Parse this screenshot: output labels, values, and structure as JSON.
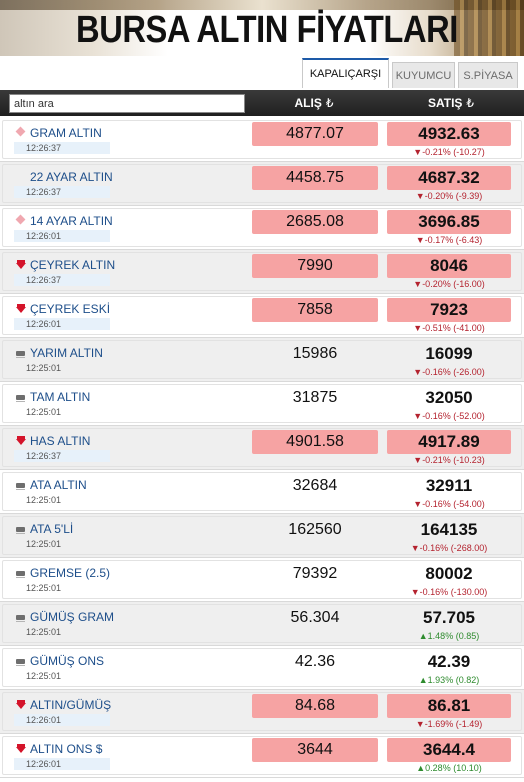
{
  "banner": {
    "title": "BURSA ALTIN FİYATLARI"
  },
  "tabs": [
    {
      "label": "KAPALIÇARŞI",
      "active": true
    },
    {
      "label": "KUYUMCU",
      "active": false
    },
    {
      "label": "S.PİYASA",
      "active": false
    }
  ],
  "search": {
    "placeholder": "altın ara",
    "value": ""
  },
  "columns": {
    "buy": "ALIŞ",
    "sell": "SATIŞ",
    "currency_symbol": "₺"
  },
  "colors": {
    "highlight": "#f6a3a3",
    "down": "#d4142a",
    "up": "#2e8b2e",
    "name": "#1d4e8a"
  },
  "rows": [
    {
      "name": "GRAM ALTIN",
      "time": "12:26:37",
      "buy": "4877.07",
      "sell": "4932.63",
      "change": "▼-0.21% (-10.27)",
      "trend": "light",
      "highlight": true,
      "changeUp": false
    },
    {
      "name": "22 AYAR ALTIN",
      "time": "12:26:37",
      "buy": "4458.75",
      "sell": "4687.32",
      "change": "▼-0.20% (-9.39)",
      "trend": "none",
      "highlight": true,
      "changeUp": false
    },
    {
      "name": "14 AYAR ALTIN",
      "time": "12:26:01",
      "buy": "2685.08",
      "sell": "3696.85",
      "change": "▼-0.17% (-6.43)",
      "trend": "light",
      "highlight": true,
      "changeUp": false
    },
    {
      "name": "ÇEYREK ALTIN",
      "time": "12:26:37",
      "buy": "7990",
      "sell": "8046",
      "change": "▼-0.20% (-16.00)",
      "trend": "down",
      "highlight": true,
      "changeUp": false
    },
    {
      "name": "ÇEYREK ESKİ",
      "time": "12:26:01",
      "buy": "7858",
      "sell": "7923",
      "change": "▼-0.51% (-41.00)",
      "trend": "down",
      "highlight": true,
      "changeUp": false
    },
    {
      "name": "YARIM ALTIN",
      "time": "12:25:01",
      "buy": "15986",
      "sell": "16099",
      "change": "▼-0.16% (-26.00)",
      "trend": "flat",
      "highlight": false,
      "changeUp": false
    },
    {
      "name": "TAM ALTIN",
      "time": "12:25:01",
      "buy": "31875",
      "sell": "32050",
      "change": "▼-0.16% (-52.00)",
      "trend": "flat",
      "highlight": false,
      "changeUp": false
    },
    {
      "name": "HAS ALTIN",
      "time": "12:26:37",
      "buy": "4901.58",
      "sell": "4917.89",
      "change": "▼-0.21% (-10.23)",
      "trend": "down",
      "highlight": true,
      "changeUp": false
    },
    {
      "name": "ATA ALTIN",
      "time": "12:25:01",
      "buy": "32684",
      "sell": "32911",
      "change": "▼-0.16% (-54.00)",
      "trend": "flat",
      "highlight": false,
      "changeUp": false
    },
    {
      "name": "ATA 5'Lİ",
      "time": "12:25:01",
      "buy": "162560",
      "sell": "164135",
      "change": "▼-0.16% (-268.00)",
      "trend": "flat",
      "highlight": false,
      "changeUp": false
    },
    {
      "name": "GREMSE (2.5)",
      "time": "12:25:01",
      "buy": "79392",
      "sell": "80002",
      "change": "▼-0.16% (-130.00)",
      "trend": "flat",
      "highlight": false,
      "changeUp": false
    },
    {
      "name": "GÜMÜŞ GRAM",
      "time": "12:25:01",
      "buy": "56.304",
      "sell": "57.705",
      "change": "▲1.48% (0.85)",
      "trend": "flat",
      "highlight": false,
      "changeUp": true
    },
    {
      "name": "GÜMÜŞ ONS",
      "time": "12:25:01",
      "buy": "42.36",
      "sell": "42.39",
      "change": "▲1.93% (0.82)",
      "trend": "flat",
      "highlight": false,
      "changeUp": true
    },
    {
      "name": "ALTIN/GÜMÜŞ",
      "time": "12:26:01",
      "buy": "84.68",
      "sell": "86.81",
      "change": "▼-1.69% (-1.49)",
      "trend": "down",
      "highlight": true,
      "changeUp": false
    },
    {
      "name": "ALTIN ONS $",
      "time": "12:26:01",
      "buy": "3644",
      "sell": "3644.4",
      "change": "▲0.28% (10.10)",
      "trend": "down",
      "highlight": true,
      "changeUp": true
    }
  ]
}
